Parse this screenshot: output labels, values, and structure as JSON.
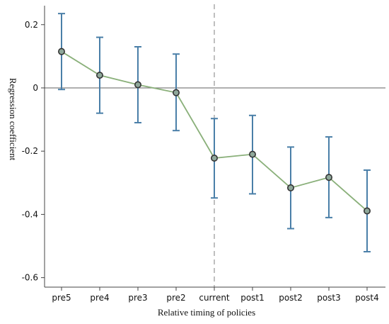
{
  "chart_data": {
    "type": "line",
    "title": "",
    "xlabel": "Relative timing of policies",
    "ylabel": "Regression coefficient",
    "categories": [
      "pre5",
      "pre4",
      "pre3",
      "pre2",
      "current",
      "post1",
      "post2",
      "post3",
      "post4"
    ],
    "yticks": [
      "0.2",
      "0",
      "-0.2",
      "-0.4",
      "-0.6"
    ],
    "ytick_values": [
      0.2,
      0,
      -0.2,
      -0.4,
      -0.6
    ],
    "ylim": [
      -0.63,
      0.26
    ],
    "reference_line": {
      "axis": "y",
      "value": 0
    },
    "vertical_marker": {
      "category": "current",
      "style": "dashed"
    },
    "grid": false,
    "series": [
      {
        "values": [
          0.115,
          0.04,
          0.01,
          -0.015,
          -0.222,
          -0.21,
          -0.316,
          -0.283,
          -0.389
        ],
        "ci_lower": [
          -0.005,
          -0.08,
          -0.11,
          -0.135,
          -0.348,
          -0.335,
          -0.445,
          -0.41,
          -0.518
        ],
        "ci_upper": [
          0.235,
          0.16,
          0.13,
          0.107,
          -0.097,
          -0.087,
          -0.187,
          -0.155,
          -0.26
        ]
      }
    ],
    "colors": {
      "line": "#8ab07a",
      "marker_fill": "#8fa89a",
      "marker_stroke": "#333333",
      "error_bar": "#4a7fa8",
      "zero_line": "#808080",
      "dashed_marker": "#aaaaaa",
      "axis": "#444444"
    }
  }
}
